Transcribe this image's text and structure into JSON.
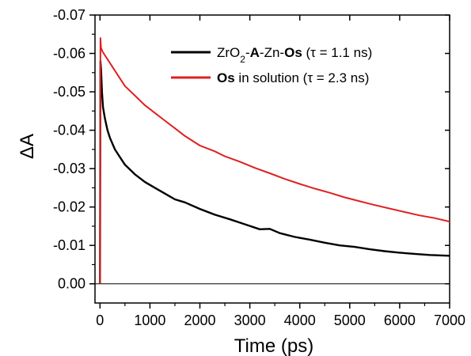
{
  "chart_data": {
    "type": "line",
    "title": "",
    "xlabel": "Time (ps)",
    "ylabel": "ΔA",
    "xlim": [
      -100,
      7000
    ],
    "ylim": [
      0.005,
      -0.07
    ],
    "y_axis_inverted": true,
    "x_ticks": [
      0,
      1000,
      2000,
      3000,
      4000,
      5000,
      6000,
      7000
    ],
    "y_ticks": [
      0.0,
      -0.01,
      -0.02,
      -0.03,
      -0.04,
      -0.05,
      -0.06,
      -0.07
    ],
    "y_tick_labels": [
      "0.00",
      "-0.01",
      "-0.02",
      "-0.03",
      "-0.04",
      "-0.05",
      "-0.06",
      "-0.07"
    ],
    "baseline": 0.0,
    "legend_position": "top-right",
    "series": [
      {
        "name_parts": [
          {
            "text": "ZrO",
            "bold": false
          },
          {
            "text": "2",
            "bold": false,
            "sub": true
          },
          {
            "text": "-",
            "bold": false
          },
          {
            "text": "A",
            "bold": true
          },
          {
            "text": "-Zn-",
            "bold": false
          },
          {
            "text": "Os",
            "bold": true
          },
          {
            "text": " (τ = 1.1 ns)",
            "bold": false
          }
        ],
        "color": "#000000",
        "x": [
          0,
          10,
          20,
          40,
          60,
          100,
          150,
          200,
          300,
          400,
          500,
          700,
          900,
          1100,
          1300,
          1500,
          1700,
          2000,
          2300,
          2600,
          2900,
          3200,
          3400,
          3600,
          3900,
          4200,
          4500,
          4800,
          5100,
          5400,
          5700,
          6000,
          6300,
          6600,
          7000
        ],
        "y": [
          0.0,
          -0.058,
          -0.056,
          -0.05,
          -0.046,
          -0.043,
          -0.04,
          -0.038,
          -0.035,
          -0.033,
          -0.031,
          -0.0285,
          -0.0265,
          -0.025,
          -0.0235,
          -0.022,
          -0.0212,
          -0.0195,
          -0.018,
          -0.0168,
          -0.0155,
          -0.0142,
          -0.0143,
          -0.0132,
          -0.0122,
          -0.0115,
          -0.0107,
          -0.01,
          -0.0096,
          -0.009,
          -0.0085,
          -0.0081,
          -0.0078,
          -0.0075,
          -0.0073
        ]
      },
      {
        "name_parts": [
          {
            "text": "Os",
            "bold": true
          },
          {
            "text": " in solution (τ = 2.3 ns)",
            "bold": false
          }
        ],
        "color": "#e02020",
        "x": [
          0,
          10,
          20,
          50,
          100,
          200,
          300,
          400,
          500,
          700,
          900,
          1100,
          1300,
          1500,
          1700,
          2000,
          2300,
          2500,
          2800,
          3100,
          3400,
          3700,
          4000,
          4300,
          4600,
          4900,
          5200,
          5500,
          5800,
          6100,
          6400,
          6700,
          7000
        ],
        "y": [
          0.0,
          -0.064,
          -0.0615,
          -0.0605,
          -0.0595,
          -0.0575,
          -0.0555,
          -0.0535,
          -0.0515,
          -0.049,
          -0.0465,
          -0.0445,
          -0.0425,
          -0.0405,
          -0.0385,
          -0.036,
          -0.0345,
          -0.0332,
          -0.0318,
          -0.0302,
          -0.0288,
          -0.0273,
          -0.026,
          -0.0248,
          -0.0237,
          -0.0225,
          -0.0215,
          -0.0205,
          -0.0196,
          -0.0187,
          -0.0178,
          -0.0171,
          -0.0162
        ]
      }
    ]
  }
}
